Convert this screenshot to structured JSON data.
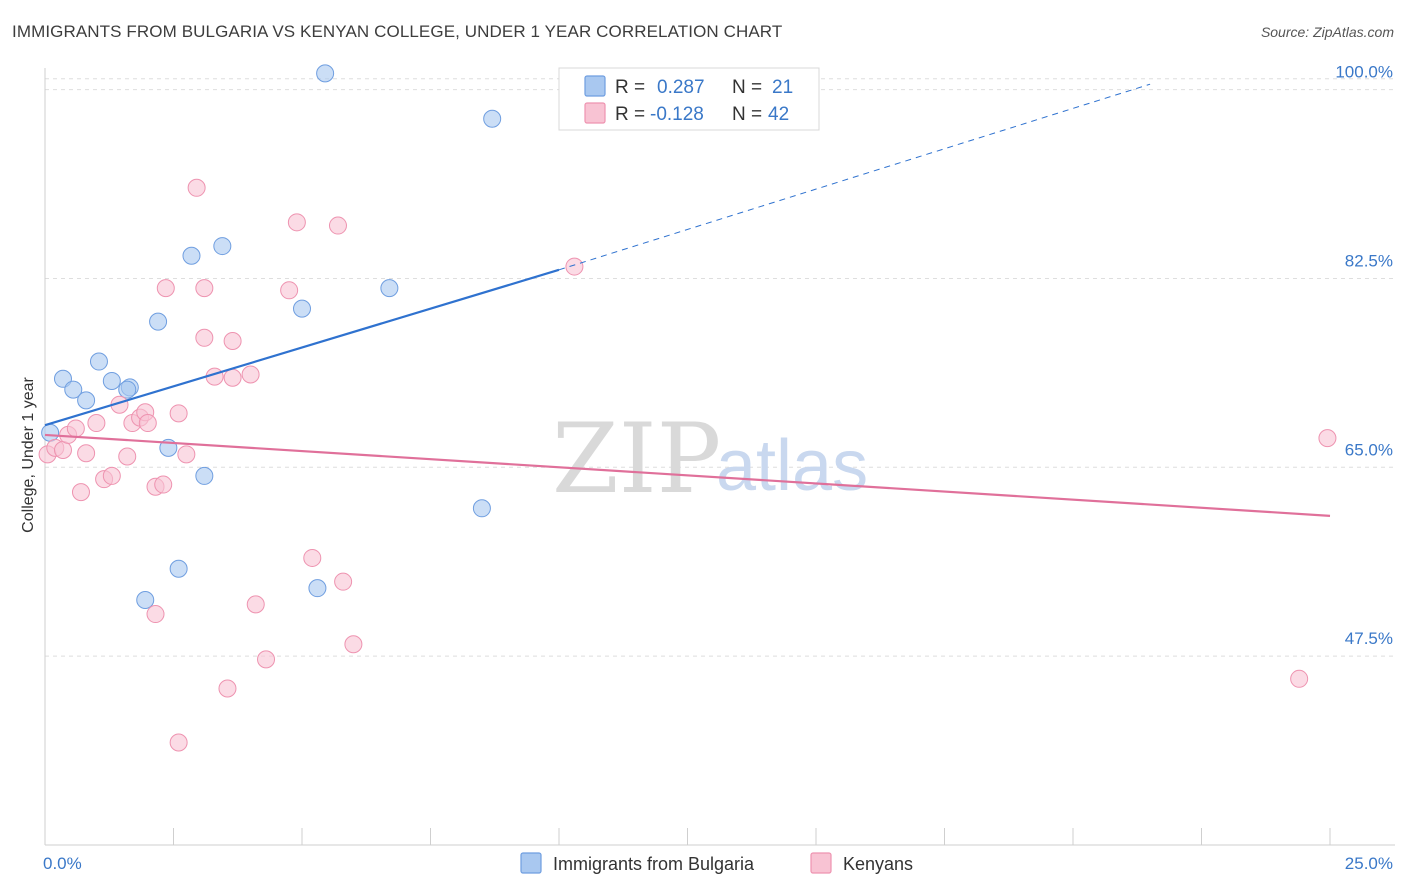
{
  "header": {
    "title": "IMMIGRANTS FROM BULGARIA VS KENYAN COLLEGE, UNDER 1 YEAR CORRELATION CHART",
    "source": "Source: ZipAtlas.com"
  },
  "watermark": {
    "zip": "ZIP",
    "atlas": "atlas"
  },
  "legend": {
    "r_label": "R =",
    "n_label": "N =",
    "rows": [
      {
        "r": "0.287",
        "n": "21",
        "color": "#a9c8f0",
        "stroke": "#6f9ee0"
      },
      {
        "r": "-0.128",
        "n": "42",
        "color": "#f8c3d3",
        "stroke": "#ee93b0"
      }
    ]
  },
  "bottom_legend": [
    {
      "label": "Immigrants from Bulgaria",
      "color": "#a9c8f0",
      "stroke": "#6f9ee0"
    },
    {
      "label": "Kenyans",
      "color": "#f8c3d3",
      "stroke": "#ee93b0"
    }
  ],
  "chart_data": {
    "type": "scatter",
    "xlabel": "",
    "ylabel": "College, Under 1 year",
    "xlim": [
      0,
      25
    ],
    "ylim": [
      30,
      102
    ],
    "x_tick_labels": [
      "0.0%",
      "25.0%"
    ],
    "y_ticks": [
      47.5,
      65.0,
      82.5,
      100.0
    ],
    "y_tick_labels": [
      "47.5%",
      "65.0%",
      "82.5%",
      "100.0%"
    ],
    "grid": "horizontal-dashed",
    "legend_position": "top-center",
    "series": [
      {
        "name": "Immigrants from Bulgaria",
        "color": "#a9c8f0",
        "stroke": "#6f9ee0",
        "line_color": "#2f72cf",
        "trend": {
          "x0": 0,
          "y0": 68.9,
          "x1": 10.0,
          "y1": 83.3,
          "dash_to_x": 21.5,
          "dash_to_y": 100.5
        },
        "points": [
          [
            0.1,
            68.2
          ],
          [
            0.35,
            73.2
          ],
          [
            0.55,
            72.2
          ],
          [
            0.8,
            71.2
          ],
          [
            1.05,
            74.8
          ],
          [
            1.3,
            73.0
          ],
          [
            1.65,
            72.4
          ],
          [
            1.6,
            72.2
          ],
          [
            2.2,
            78.5
          ],
          [
            2.4,
            66.8
          ],
          [
            2.85,
            84.6
          ],
          [
            3.1,
            64.2
          ],
          [
            3.45,
            85.5
          ],
          [
            2.6,
            55.6
          ],
          [
            1.95,
            52.7
          ],
          [
            5.0,
            79.7
          ],
          [
            5.3,
            53.8
          ],
          [
            5.45,
            101.5
          ],
          [
            6.7,
            81.6
          ],
          [
            8.5,
            61.2
          ],
          [
            8.7,
            97.3
          ]
        ]
      },
      {
        "name": "Kenyans",
        "color": "#f8c3d3",
        "stroke": "#ee93b0",
        "line_color": "#e0709a",
        "trend": {
          "x0": 0,
          "y0": 68.0,
          "x1": 25.0,
          "y1": 60.5
        },
        "points": [
          [
            0.05,
            66.2
          ],
          [
            0.2,
            66.8
          ],
          [
            0.35,
            66.6
          ],
          [
            0.45,
            68.0
          ],
          [
            0.6,
            68.6
          ],
          [
            0.7,
            62.7
          ],
          [
            0.8,
            66.3
          ],
          [
            1.0,
            69.1
          ],
          [
            1.15,
            63.9
          ],
          [
            1.3,
            64.2
          ],
          [
            1.45,
            70.8
          ],
          [
            1.6,
            66.0
          ],
          [
            1.7,
            69.1
          ],
          [
            1.85,
            69.6
          ],
          [
            1.95,
            70.1
          ],
          [
            2.0,
            69.1
          ],
          [
            2.15,
            51.4
          ],
          [
            2.15,
            63.2
          ],
          [
            2.3,
            63.4
          ],
          [
            2.35,
            81.6
          ],
          [
            2.6,
            39.5
          ],
          [
            2.6,
            70.0
          ],
          [
            2.75,
            66.2
          ],
          [
            2.95,
            90.9
          ],
          [
            3.1,
            77.0
          ],
          [
            3.1,
            81.6
          ],
          [
            3.3,
            73.4
          ],
          [
            3.55,
            44.5
          ],
          [
            3.65,
            73.3
          ],
          [
            3.65,
            76.7
          ],
          [
            4.0,
            73.6
          ],
          [
            4.1,
            52.3
          ],
          [
            4.3,
            47.2
          ],
          [
            4.75,
            81.4
          ],
          [
            4.9,
            87.7
          ],
          [
            5.2,
            56.6
          ],
          [
            5.7,
            87.4
          ],
          [
            5.8,
            54.4
          ],
          [
            6.0,
            48.6
          ],
          [
            10.3,
            83.6
          ],
          [
            24.4,
            45.4
          ],
          [
            24.95,
            67.7
          ]
        ]
      }
    ]
  }
}
